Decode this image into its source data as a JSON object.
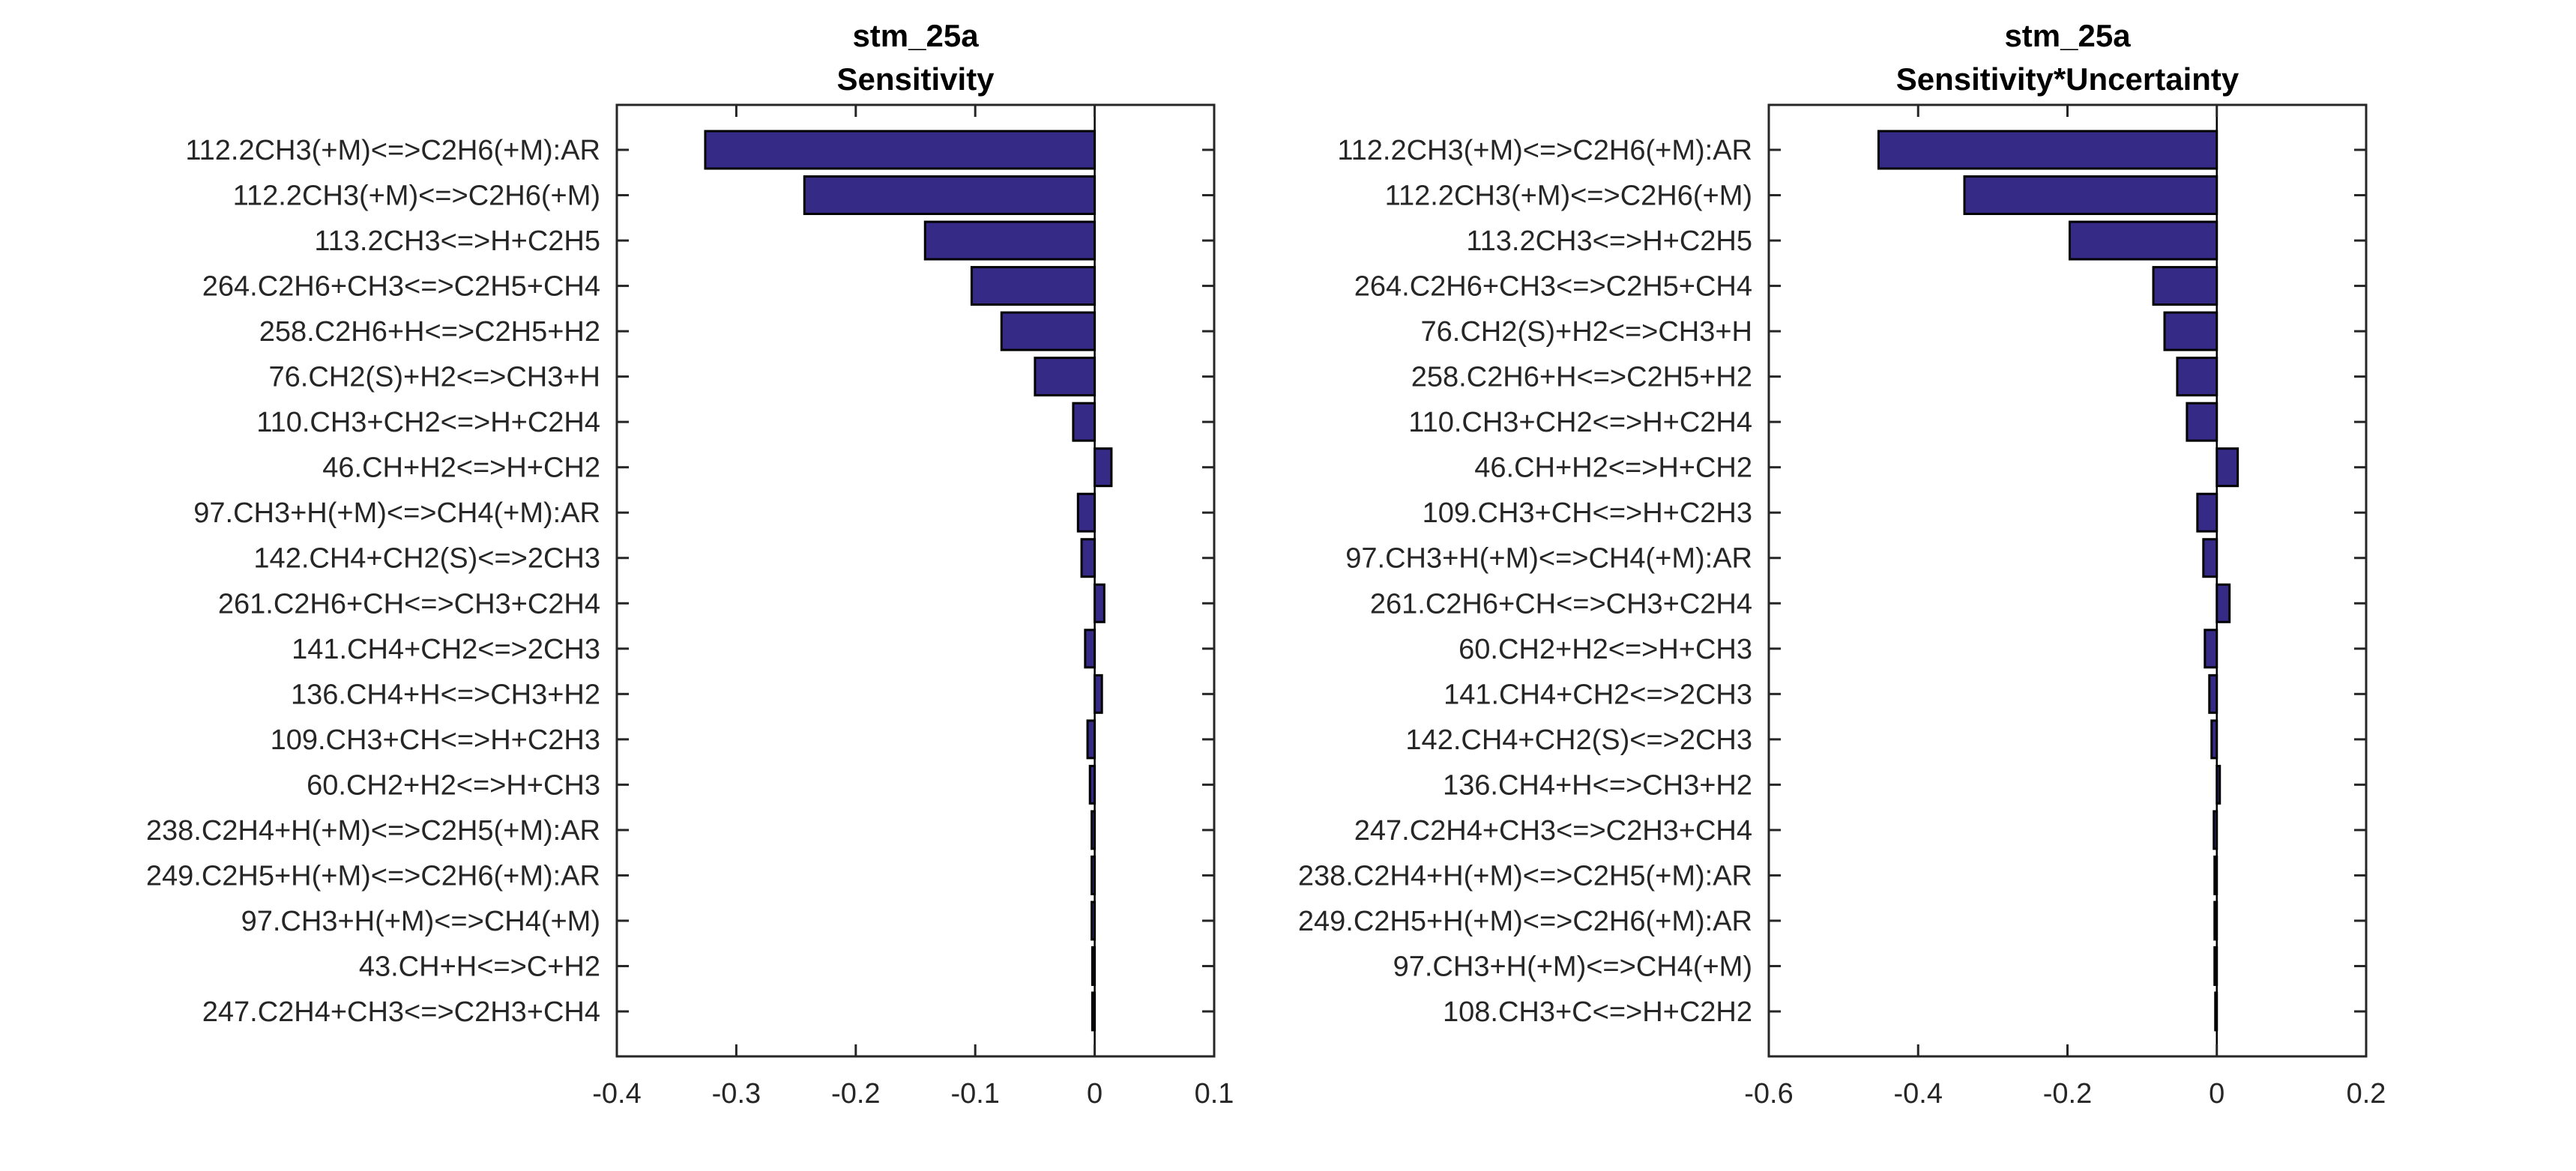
{
  "chart_data": [
    {
      "type": "bar",
      "orientation": "horizontal",
      "title": [
        "stm_25a",
        "Sensitivity"
      ],
      "xlabel": "",
      "ylabel": "",
      "xlim": [
        -0.4,
        0.1
      ],
      "xticks": [
        -0.4,
        -0.3,
        -0.2,
        -0.1,
        0,
        0.1
      ],
      "xtick_labels": [
        "-0.4",
        "-0.3",
        "-0.2",
        "-0.1",
        "0",
        "0.1"
      ],
      "grid": false,
      "bar_color": "#352a86",
      "categories": [
        "112.2CH3(+M)<=>C2H6(+M):AR",
        "112.2CH3(+M)<=>C2H6(+M)",
        "113.2CH3<=>H+C2H5",
        "264.C2H6+CH3<=>C2H5+CH4",
        "258.C2H6+H<=>C2H5+H2",
        "76.CH2(S)+H2<=>CH3+H",
        "110.CH3+CH2<=>H+C2H4",
        "46.CH+H2<=>H+CH2",
        "97.CH3+H(+M)<=>CH4(+M):AR",
        "142.CH4+CH2(S)<=>2CH3",
        "261.C2H6+CH<=>CH3+C2H4",
        "141.CH4+CH2<=>2CH3",
        "136.CH4+H<=>CH3+H2",
        "109.CH3+CH<=>H+C2H3",
        "60.CH2+H2<=>H+CH3",
        "238.C2H4+H(+M)<=>C2H5(+M):AR",
        "249.C2H5+H(+M)<=>C2H6(+M):AR",
        "97.CH3+H(+M)<=>CH4(+M)",
        "43.CH+H<=>C+H2",
        "247.C2H4+CH3<=>C2H3+CH4"
      ],
      "values": [
        -0.326,
        -0.243,
        -0.142,
        -0.103,
        -0.078,
        -0.05,
        -0.018,
        0.014,
        -0.014,
        -0.011,
        0.008,
        -0.008,
        0.006,
        -0.006,
        -0.004,
        -0.0025,
        -0.0025,
        -0.0025,
        -0.002,
        -0.002
      ]
    },
    {
      "type": "bar",
      "orientation": "horizontal",
      "title": [
        "stm_25a",
        "Sensitivity*Uncertainty"
      ],
      "xlabel": "",
      "ylabel": "",
      "xlim": [
        -0.6,
        0.2
      ],
      "xticks": [
        -0.6,
        -0.4,
        -0.2,
        0,
        0.2
      ],
      "xtick_labels": [
        "-0.6",
        "-0.4",
        "-0.2",
        "0",
        "0.2"
      ],
      "grid": false,
      "bar_color": "#352a86",
      "categories": [
        "112.2CH3(+M)<=>C2H6(+M):AR",
        "112.2CH3(+M)<=>C2H6(+M)",
        "113.2CH3<=>H+C2H5",
        "264.C2H6+CH3<=>C2H5+CH4",
        "76.CH2(S)+H2<=>CH3+H",
        "258.C2H6+H<=>C2H5+H2",
        "110.CH3+CH2<=>H+C2H4",
        "46.CH+H2<=>H+CH2",
        "109.CH3+CH<=>H+C2H3",
        "97.CH3+H(+M)<=>CH4(+M):AR",
        "261.C2H6+CH<=>CH3+C2H4",
        "60.CH2+H2<=>H+CH3",
        "141.CH4+CH2<=>2CH3",
        "142.CH4+CH2(S)<=>2CH3",
        "136.CH4+H<=>CH3+H2",
        "247.C2H4+CH3<=>C2H3+CH4",
        "238.C2H4+H(+M)<=>C2H5(+M):AR",
        "249.C2H5+H(+M)<=>C2H6(+M):AR",
        "97.CH3+H(+M)<=>CH4(+M)",
        "108.CH3+C<=>H+C2H2"
      ],
      "values": [
        -0.453,
        -0.338,
        -0.197,
        -0.085,
        -0.07,
        -0.053,
        -0.04,
        0.028,
        -0.026,
        -0.018,
        0.017,
        -0.016,
        -0.01,
        -0.007,
        0.004,
        -0.004,
        -0.003,
        -0.003,
        -0.003,
        -0.002
      ]
    }
  ]
}
